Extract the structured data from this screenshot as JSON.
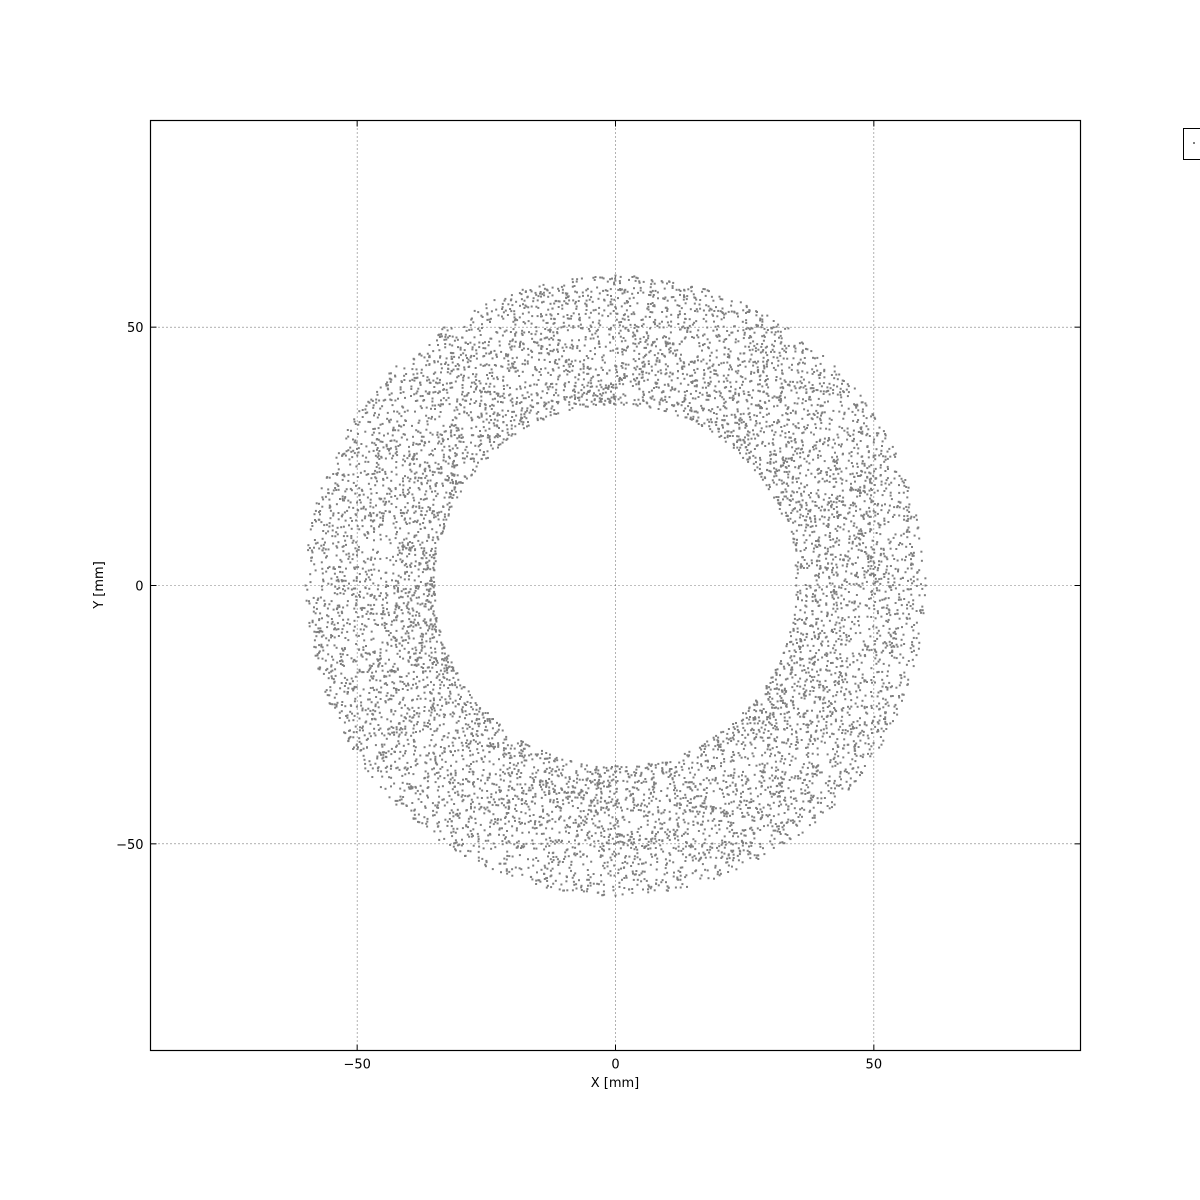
{
  "chart_data": {
    "type": "scatter",
    "title": "",
    "xlabel": "X [mm]",
    "ylabel": "Y [mm]",
    "xlim": [
      -90,
      90
    ],
    "ylim": [
      -90,
      90
    ],
    "xticks": [
      -50,
      0,
      50
    ],
    "yticks": [
      -50,
      0,
      50
    ],
    "xtick_labels": [
      "−50",
      "0",
      "50"
    ],
    "ytick_labels": [
      "−50",
      "0",
      "50"
    ],
    "grid": true,
    "legend": {
      "placement": "outside-top-right",
      "entries": []
    },
    "marker_color": "#7f7f7f",
    "series": [
      {
        "distribution": "annulus",
        "center": [
          0,
          0
        ],
        "inner_radius": 35,
        "outer_radius": 60,
        "point_count": 9000,
        "points": [
          [
            0,
            35
          ],
          [
            0,
            -35
          ],
          [
            35,
            0
          ],
          [
            -35,
            0
          ],
          [
            0,
            60
          ],
          [
            0,
            -60
          ],
          [
            60,
            0
          ],
          [
            -60,
            0
          ],
          [
            24.7,
            24.7
          ],
          [
            -24.7,
            24.7
          ],
          [
            24.7,
            -24.7
          ],
          [
            -24.7,
            -24.7
          ],
          [
            42.4,
            42.4
          ],
          [
            -42.4,
            42.4
          ],
          [
            42.4,
            -42.4
          ],
          [
            -42.4,
            -42.4
          ]
        ]
      }
    ]
  }
}
